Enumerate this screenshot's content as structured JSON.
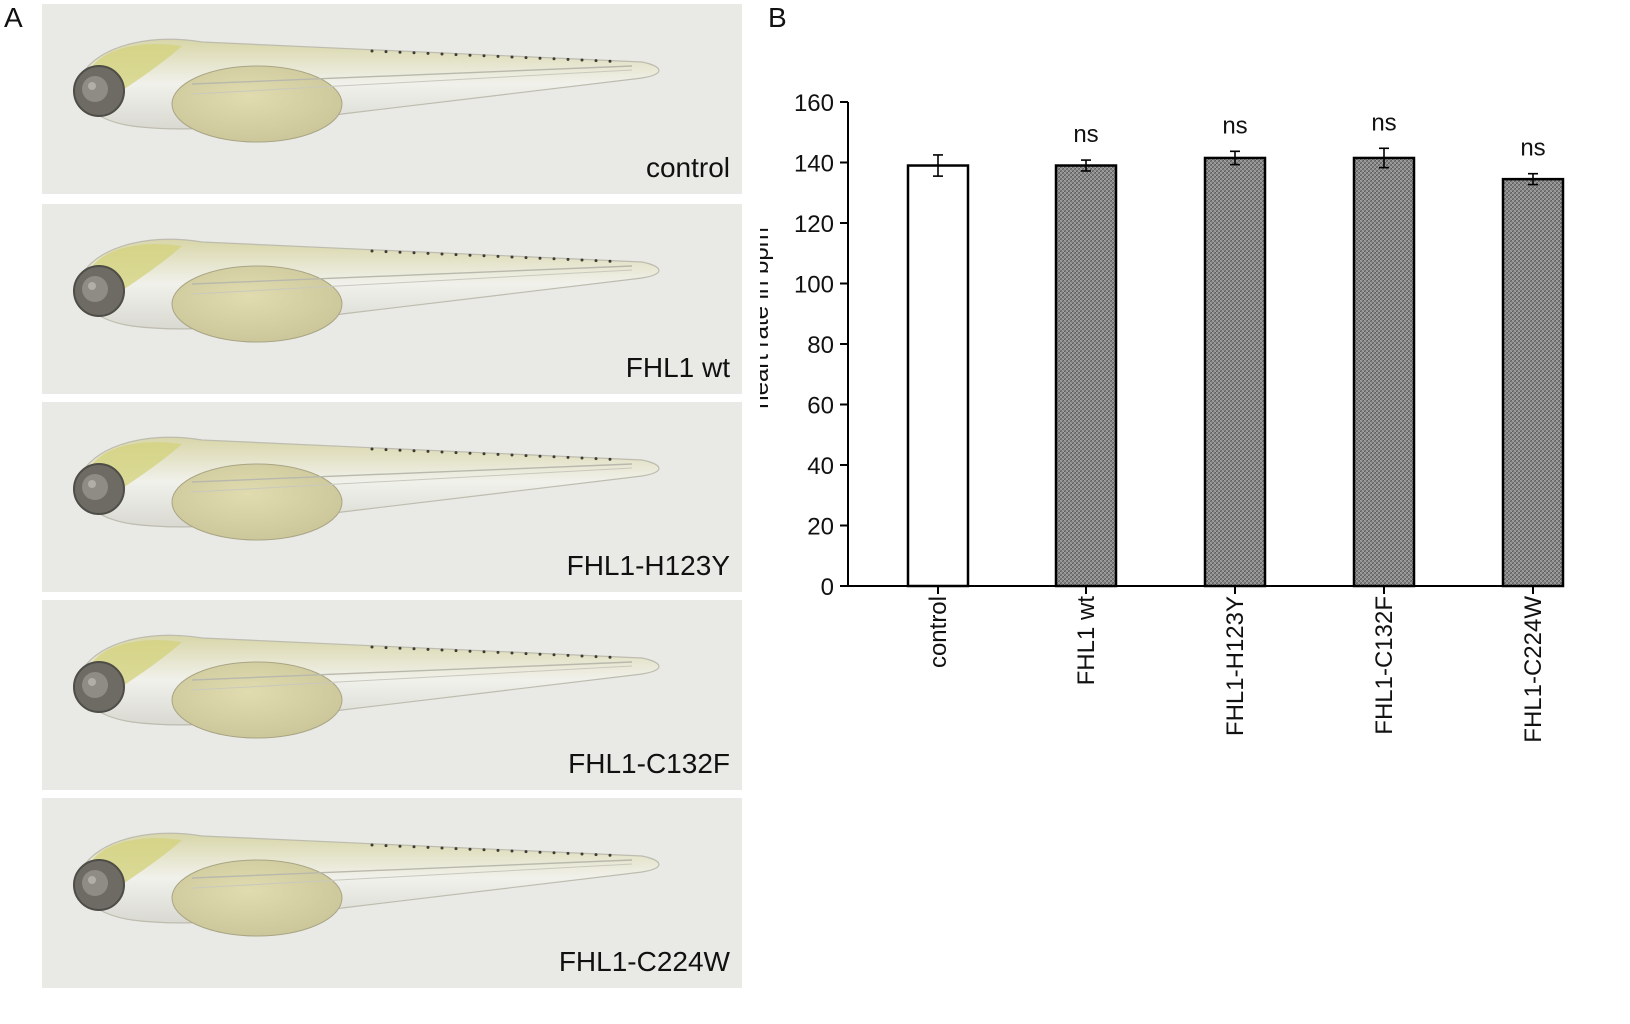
{
  "panels": {
    "a_letter": "A",
    "b_letter": "B"
  },
  "embryos": [
    {
      "label": "control"
    },
    {
      "label": "FHL1 wt"
    },
    {
      "label": "FHL1-H123Y"
    },
    {
      "label": "FHL1-C132F"
    },
    {
      "label": "FHL1-C224W"
    }
  ],
  "colors": {
    "control_bar": "#ffffff",
    "treated_bar": "#8a8a8a",
    "embryo_background": "#e9e9e6",
    "yolk": "#c9c497",
    "head_tint": "#d3d27a"
  },
  "chart_data": {
    "type": "bar",
    "ylabel": "heart rate in bpm",
    "xlabel": "",
    "ylim": [
      0,
      160
    ],
    "yticks": [
      0,
      20,
      40,
      60,
      80,
      100,
      120,
      140,
      160
    ],
    "categories": [
      "control",
      "FHL1 wt",
      "FHL1-H123Y",
      "FHL1-C132F",
      "FHL1-C224W"
    ],
    "values": [
      139,
      139,
      141.5,
      141.5,
      134.5
    ],
    "errors": [
      3.5,
      1.8,
      2.2,
      3.2,
      1.8
    ],
    "annotations": [
      "",
      "ns",
      "ns",
      "ns",
      "ns"
    ],
    "grid": false,
    "legend": "none"
  }
}
